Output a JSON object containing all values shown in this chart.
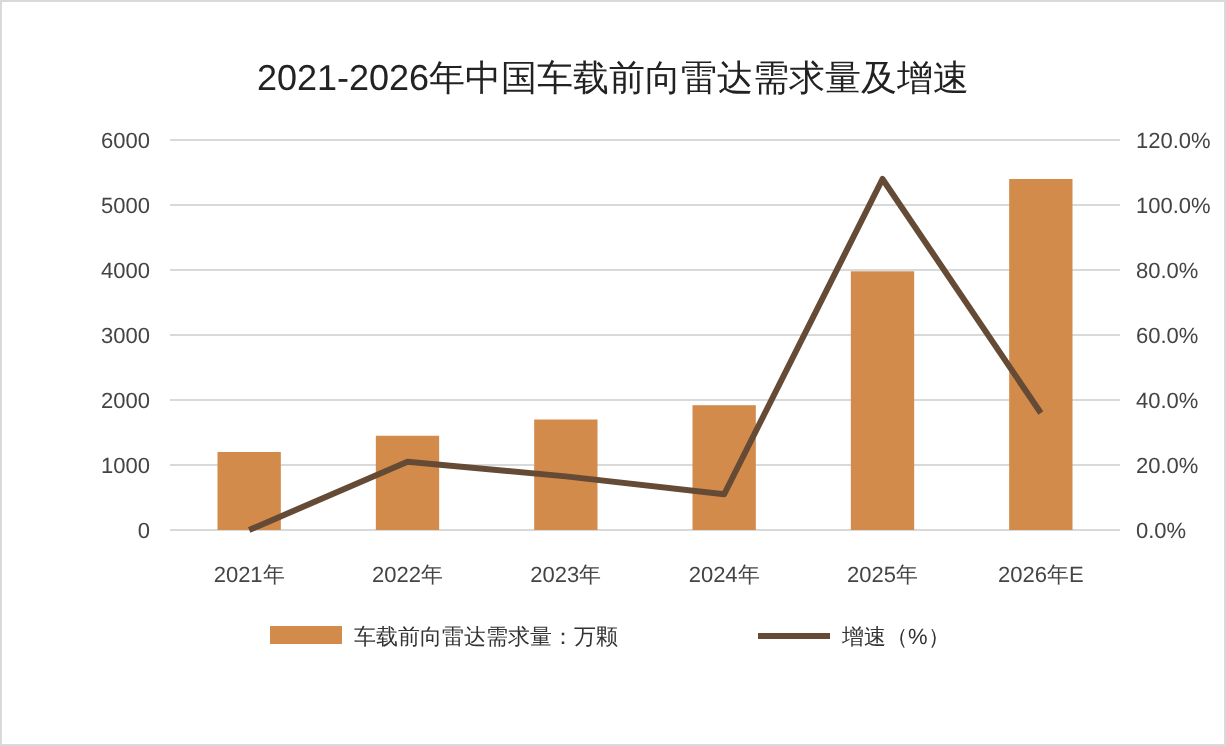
{
  "chart_data": {
    "type": "bar",
    "title": "2021-2026年中国车载前向雷达需求量及增速",
    "categories": [
      "2021年",
      "2022年",
      "2023年",
      "2024年",
      "2025年",
      "2026年E"
    ],
    "series": [
      {
        "name": "车载前向雷达需求量：万颗",
        "color": "#d38b4c",
        "values": [
          1200,
          1450,
          1700,
          1920,
          3980,
          5400
        ]
      },
      {
        "name": "增速（%）",
        "type": "line",
        "axis": "y2",
        "color": "#654b35",
        "values": [
          0,
          21,
          16.5,
          11,
          108,
          36
        ]
      }
    ],
    "ylim": [
      0,
      6000
    ],
    "yticks": [
      0,
      1000,
      2000,
      3000,
      4000,
      5000,
      6000
    ],
    "y2lim": [
      0,
      120
    ],
    "y2ticks": [
      {
        "value": 0,
        "label": "0.0%"
      },
      {
        "value": 20,
        "label": "20.0%"
      },
      {
        "value": 40,
        "label": "40.0%"
      },
      {
        "value": 60,
        "label": "60.0%"
      },
      {
        "value": 80,
        "label": "80.0%"
      },
      {
        "value": 100,
        "label": "100.0%"
      },
      {
        "value": 120,
        "label": "120.0%"
      }
    ],
    "grid": "y",
    "legend": "bottom",
    "marker": "none",
    "line_style": "solid"
  }
}
